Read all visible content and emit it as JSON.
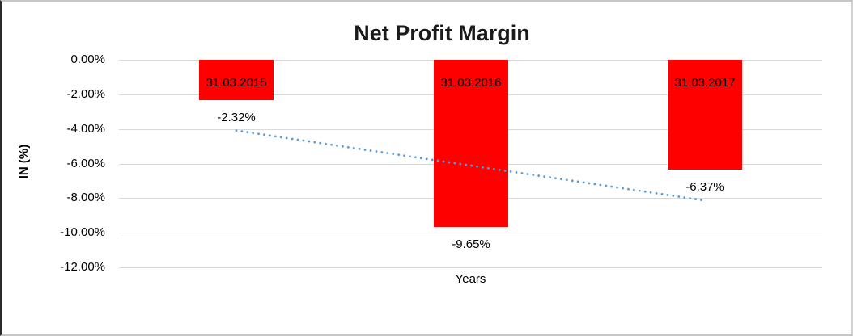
{
  "chart_data": {
    "type": "bar",
    "title": "Net Profit Margin",
    "xlabel": "Years",
    "ylabel": "IN (%)",
    "categories": [
      "31.03.2015",
      "31.03.2016",
      "31.03.2017"
    ],
    "values": [
      -2.32,
      -9.65,
      -6.37
    ],
    "value_labels": [
      "-2.32%",
      "-9.65%",
      "-6.37%"
    ],
    "y_ticks": [
      {
        "label": "0.00%",
        "value": 0
      },
      {
        "label": "-2.00%",
        "value": -2
      },
      {
        "label": "-4.00%",
        "value": -4
      },
      {
        "label": "-6.00%",
        "value": -6
      },
      {
        "label": "-8.00%",
        "value": -8
      },
      {
        "label": "-10.00%",
        "value": -10
      },
      {
        "label": "-12.00%",
        "value": -12
      }
    ],
    "ylim": [
      -13,
      0
    ],
    "grid": true,
    "legend": false,
    "bar_color": "#ff0000",
    "gridline_color": "#d9d9d9",
    "trendline": {
      "type": "linear",
      "style": "dotted",
      "color": "#5b9bd5",
      "start_value": -4.09,
      "end_value": -8.14
    }
  }
}
